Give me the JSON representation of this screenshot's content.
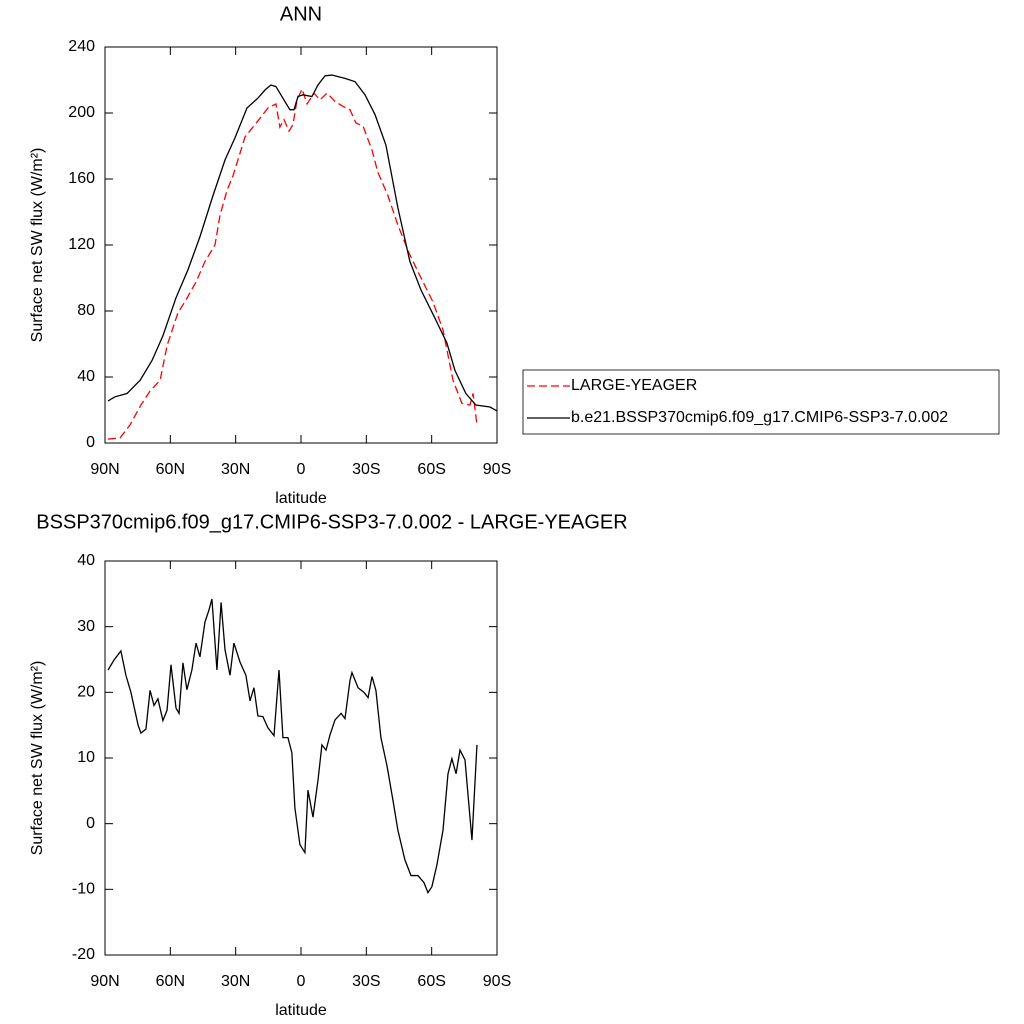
{
  "chart_data": [
    {
      "type": "line",
      "title": "ANN",
      "x_label": "latitude",
      "y_label": "Surface net SW flux (W/m²)",
      "xlim": [
        90,
        -90
      ],
      "xticks": [
        {
          "value": 90,
          "label": "90N"
        },
        {
          "value": 60,
          "label": "60N"
        },
        {
          "value": 30,
          "label": "30N"
        },
        0,
        {
          "value": -30,
          "label": "30S"
        },
        {
          "value": -60,
          "label": "60S"
        },
        {
          "value": -90,
          "label": "90S"
        }
      ],
      "ylim": [
        0,
        240
      ],
      "yticks": [
        0,
        40,
        80,
        120,
        160,
        200,
        240
      ],
      "legend": "right",
      "series": [
        {
          "name": "LARGE-YEAGER",
          "color": "#ff0000",
          "line_style": "dashed",
          "x": [
            88.6,
            83.1,
            78.5,
            73.5,
            69.3,
            64.7,
            61.5,
            56.5,
            52.8,
            48.2,
            44.1,
            39.5,
            37.2,
            34,
            31.2,
            25.7,
            20.2,
            15.2,
            11.5,
            9.7,
            7.8,
            5.5,
            3.7,
            1.8,
            -0.5,
            -2.8,
            -6,
            -8.7,
            -12,
            -15.6,
            -19.3,
            -22.5,
            -25.2,
            -28.5,
            -32.6,
            -35.3,
            -39.9,
            -44.5,
            -50,
            -55.5,
            -60.6,
            -65.2,
            -69.8,
            -73.9,
            -77.6,
            -79,
            -80.8
          ],
          "values": [
            2.4,
            3,
            11,
            23,
            31.5,
            38,
            59,
            79,
            86.7,
            97.6,
            110,
            120,
            138,
            153,
            162,
            185.5,
            194.5,
            203,
            205.5,
            191.5,
            196,
            189,
            193,
            208,
            214.5,
            205.5,
            212,
            208,
            212,
            207,
            204,
            202,
            194,
            192,
            177.5,
            164,
            150,
            132,
            114,
            99,
            85.5,
            68.5,
            38,
            24,
            23,
            30,
            11
          ]
        },
        {
          "name": "b.e21.BSSP370cmip6.f09_g17.CMIP6-SSP3-7.0.002",
          "color": "#000000",
          "line_style": "solid",
          "x": [
            88.6,
            85.4,
            79.9,
            73.9,
            68.4,
            63.4,
            57.4,
            51.9,
            46.4,
            40.4,
            34.9,
            30.3,
            24.8,
            19.8,
            16.5,
            13.8,
            11.5,
            8.3,
            5.1,
            3.2,
            1.4,
            -0.9,
            -5,
            -7.8,
            -11,
            -14.2,
            -20.2,
            -24.8,
            -29.4,
            -34,
            -39,
            -44.5,
            -50,
            -55.1,
            -61,
            -67,
            -70.7,
            -75.7,
            -80.3,
            -86.8,
            -90
          ],
          "values": [
            25.5,
            28,
            30,
            38,
            50,
            65,
            88,
            105,
            125,
            150,
            171.5,
            185,
            203,
            209,
            214,
            217,
            216,
            209,
            202,
            202,
            210,
            211,
            210,
            217,
            222.5,
            223,
            221,
            219,
            211,
            199,
            180.5,
            142.5,
            110,
            92.7,
            77,
            60.6,
            44,
            30,
            23,
            21.8,
            19.4
          ]
        }
      ]
    },
    {
      "type": "line",
      "title": "BSSP370cmip6.f09_g17.CMIP6-SSP3-7.0.002 - LARGE-YEAGER",
      "x_label": "latitude",
      "y_label": "Surface net SW flux (W/m²)",
      "xlim": [
        90,
        -90
      ],
      "xticks": [
        {
          "value": 90,
          "label": "90N"
        },
        {
          "value": 60,
          "label": "60N"
        },
        {
          "value": 30,
          "label": "30N"
        },
        0,
        {
          "value": -30,
          "label": "30S"
        },
        {
          "value": -60,
          "label": "60S"
        },
        {
          "value": -90,
          "label": "90S"
        }
      ],
      "ylim": [
        -20,
        40
      ],
      "yticks": [
        -20,
        -10,
        0,
        10,
        20,
        30,
        40
      ],
      "series": [
        {
          "color": "#000000",
          "line_style": "solid",
          "x": [
            88.6,
            85.9,
            82.7,
            80.4,
            78.1,
            74.8,
            73.5,
            71.2,
            69.3,
            67.5,
            65.7,
            63.4,
            61.5,
            59.7,
            57.4,
            56,
            54.2,
            52.4,
            50.1,
            48.2,
            46.4,
            44.1,
            42.3,
            40.9,
            38.6,
            36.7,
            34.9,
            32.6,
            30.8,
            28,
            25.3,
            23.4,
            21.6,
            19.8,
            17.5,
            15.2,
            12.4,
            10.1,
            8.3,
            6,
            4.2,
            2.8,
            0.5,
            -1.8,
            -3.2,
            -5.5,
            -7.8,
            -9.6,
            -11.5,
            -13.3,
            -15.6,
            -18.4,
            -20.2,
            -22.5,
            -23.4,
            -26.2,
            -28.9,
            -30.8,
            -32.6,
            -34.4,
            -36.7,
            -39.5,
            -42.2,
            -44.5,
            -47.7,
            -50.5,
            -53.7,
            -56.5,
            -58.3,
            -60.1,
            -62.4,
            -65.2,
            -67.5,
            -69.3,
            -71.2,
            -73,
            -75.3,
            -78.5,
            -80.8
          ],
          "values": [
            23.4,
            24.9,
            26.3,
            22.6,
            20,
            15,
            13.8,
            14.4,
            20.3,
            18,
            19,
            15.7,
            17.3,
            24.2,
            17.6,
            16.8,
            24.5,
            20.4,
            23.4,
            27.5,
            25.4,
            30.7,
            32.5,
            34.2,
            23.4,
            33.7,
            26.5,
            22.6,
            27.5,
            24.6,
            22.6,
            18.7,
            20.7,
            16.4,
            16.3,
            14.6,
            13.4,
            23.4,
            13.1,
            13.1,
            10.8,
            2.4,
            -3.2,
            -4.4,
            5.1,
            1,
            6.6,
            12,
            11.2,
            13.5,
            15.8,
            16.8,
            16,
            21.8,
            23,
            20.7,
            20,
            19.2,
            22.4,
            20.3,
            13.1,
            8.8,
            3.6,
            -1,
            -5.5,
            -7.9,
            -7.9,
            -9,
            -10.5,
            -9.6,
            -6.3,
            -1,
            7.6,
            9.9,
            7.6,
            11.2,
            9.7,
            -2.5,
            12
          ]
        }
      ]
    }
  ]
}
